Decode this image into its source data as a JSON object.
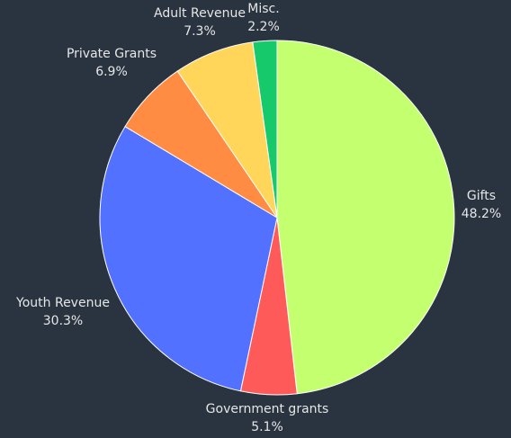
{
  "chart_data": {
    "type": "pie",
    "title": "",
    "start_angle_deg": 0,
    "direction": "clockwise",
    "legend": "none",
    "slices": [
      {
        "label": "Gifts",
        "value": 48.2,
        "pct_label": "48.2%",
        "color": "#c3ff6e"
      },
      {
        "label": "Government grants",
        "value": 5.1,
        "pct_label": "5.1%",
        "color": "#ff5a5a"
      },
      {
        "label": "Youth Revenue",
        "value": 30.3,
        "pct_label": "30.3%",
        "color": "#5271ff"
      },
      {
        "label": "Private Grants",
        "value": 6.9,
        "pct_label": "6.9%",
        "color": "#ff8c42"
      },
      {
        "label": "Adult Revenue",
        "value": 7.3,
        "pct_label": "7.3%",
        "color": "#ffd659"
      },
      {
        "label": "Misc.",
        "value": 2.2,
        "pct_label": "2.2%",
        "color": "#16c96a"
      }
    ]
  },
  "colors": {
    "background": "#2a3441",
    "label_text": "#e6e6e6",
    "slice_border": "#ffffff"
  }
}
